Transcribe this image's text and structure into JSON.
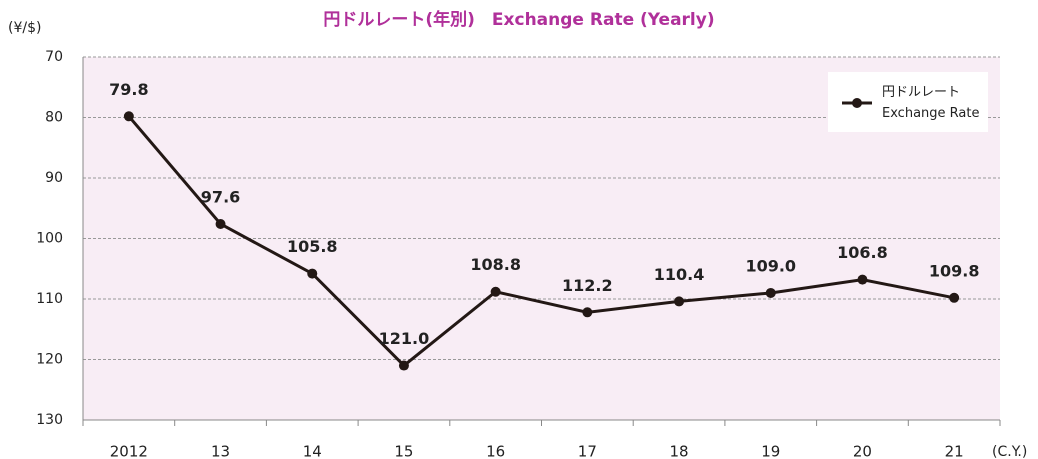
{
  "chart_data": {
    "type": "line",
    "title": "円ドルレート(年別)　Exchange Rate (Yearly)",
    "y_label": "(¥/$)",
    "x_label": "(C.Y.)",
    "categories": [
      "2012",
      "13",
      "14",
      "15",
      "16",
      "17",
      "18",
      "19",
      "20",
      "21"
    ],
    "series": [
      {
        "name": "円ドルレート\nExchange Rate",
        "color": "#231815",
        "values": [
          79.8,
          97.6,
          105.8,
          121.0,
          108.8,
          112.2,
          110.4,
          109.0,
          106.8,
          109.8
        ],
        "value_labels": [
          "79.8",
          "97.6",
          "105.8",
          "121.0",
          "108.8",
          "112.2",
          "110.4",
          "109.0",
          "106.8",
          "109.8"
        ]
      }
    ],
    "ylim": [
      70,
      130
    ],
    "yticks": [
      70,
      80,
      90,
      100,
      110,
      120,
      130
    ],
    "y_inverted": true,
    "grid": true,
    "legend": "upper right"
  }
}
